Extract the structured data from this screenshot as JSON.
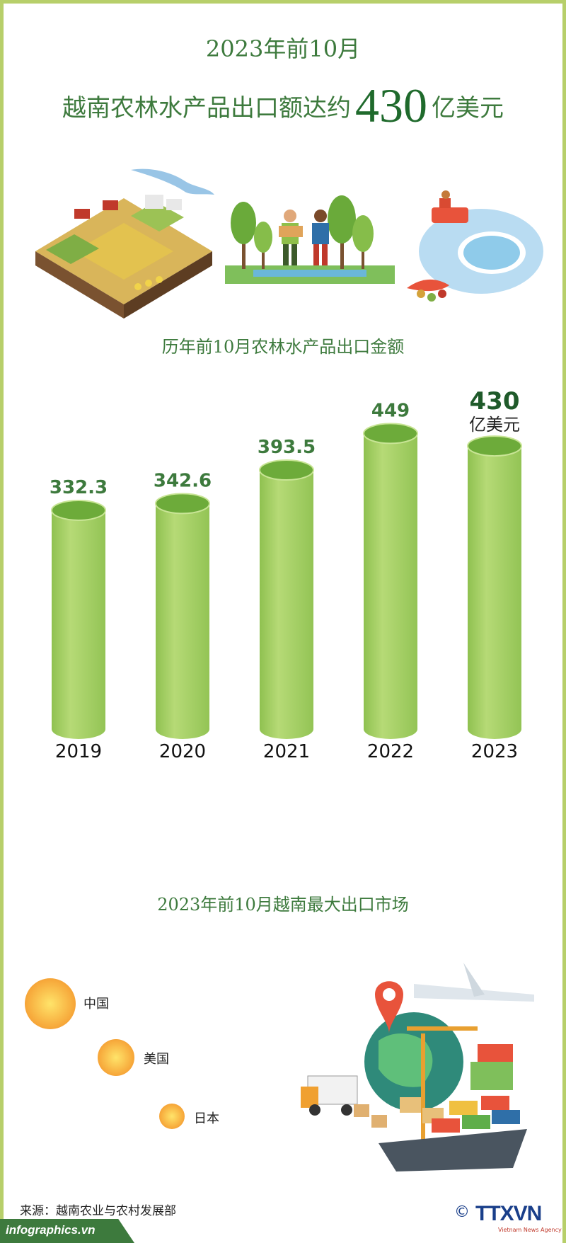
{
  "header": {
    "line1": "2023年前10月",
    "line2_prefix": "越南农林水产品出口额达约",
    "line2_number": "430",
    "line2_unit": "亿美元"
  },
  "chart_section_title": "历年前10月农林水产品出口金额",
  "chart_data": {
    "type": "bar",
    "categories": [
      "2019",
      "2020",
      "2021",
      "2022",
      "2023"
    ],
    "values": [
      332.3,
      342.6,
      393.5,
      449,
      430
    ],
    "value_labels": [
      "332.3",
      "342.6",
      "393.5",
      "449",
      "430"
    ],
    "unit_label": "亿美元",
    "title": "历年前10月农林水产品出口金额",
    "ylim": [
      0,
      460
    ],
    "bar_color": "#a3cd62",
    "bar_top_color": "#6dab3a",
    "label_color": "#3d7a3d"
  },
  "markets_section_title": "2023年前10月越南最大出口市场",
  "markets": [
    {
      "name": "中国",
      "rank": 1
    },
    {
      "name": "美国",
      "rank": 2
    },
    {
      "name": "日本",
      "rank": 3
    }
  ],
  "footer": {
    "source": "来源：越南农业与农村发展部",
    "site": "infographics.vn",
    "copyright": "©",
    "logo": "TTXVN",
    "logo_sub": "Vietnam News Agency"
  },
  "icons": [
    "farm-field-illustration",
    "farmers-illustration",
    "fish-farm-illustration",
    "logistics-illustration"
  ]
}
